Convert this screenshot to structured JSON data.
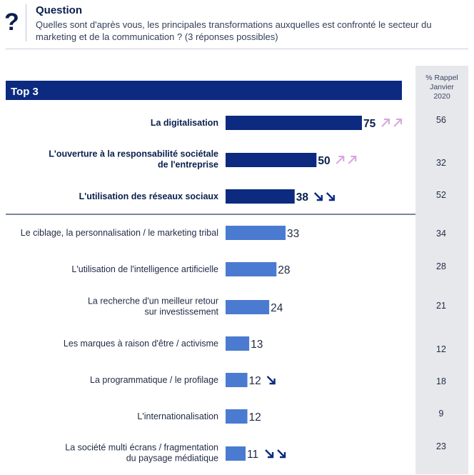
{
  "header": {
    "icon": "question-mark-icon",
    "title": "Question",
    "text": "Quelles sont d'après vous, les principales transformations auxquelles est confronté le secteur du marketing et de la communication ? (3 réponses possibles)"
  },
  "colors": {
    "top3_bar": "#0b2a80",
    "other_bar": "#4a7bd0",
    "up_arrow": "#d7a6dc",
    "down_arrow": "#0b2a80",
    "side_panel": "#e7e8ec"
  },
  "chart_data": {
    "type": "bar",
    "orientation": "horizontal",
    "group_label": "Top 3",
    "side_column_header": [
      "% Rappel",
      "Janvier",
      "2020"
    ],
    "categories": [
      [
        "La digitalisation"
      ],
      [
        "L'ouverture à la responsabilité sociétale",
        "de l'entreprise"
      ],
      [
        "L'utilisation des réseaux sociaux"
      ],
      [
        "Le ciblage, la personnalisation / le marketing tribal"
      ],
      [
        "L'utilisation de l'intelligence artificielle"
      ],
      [
        "La recherche d'un meilleur retour",
        "sur investissement"
      ],
      [
        "Les marques à raison d'être / activisme"
      ],
      [
        "La programmatique / le profilage"
      ],
      [
        "L'internationalisation"
      ],
      [
        "La société multi écrans / fragmentation",
        "du paysage médiatique"
      ]
    ],
    "values": [
      75,
      50,
      38,
      33,
      28,
      24,
      13,
      12,
      12,
      11
    ],
    "value_labels": [
      "75",
      "50",
      "38",
      "33",
      "28",
      "24",
      "13",
      "12",
      "12",
      "11"
    ],
    "rappel_janvier_2020": [
      "56",
      "32",
      "52",
      "34",
      "28",
      "21",
      "12",
      "18",
      "9",
      "23"
    ],
    "trend": [
      "up2",
      "up2",
      "down2",
      "",
      "",
      "",
      "",
      "down1",
      "",
      "down2"
    ],
    "top3_count": 3,
    "xlim": [
      0,
      100
    ]
  }
}
